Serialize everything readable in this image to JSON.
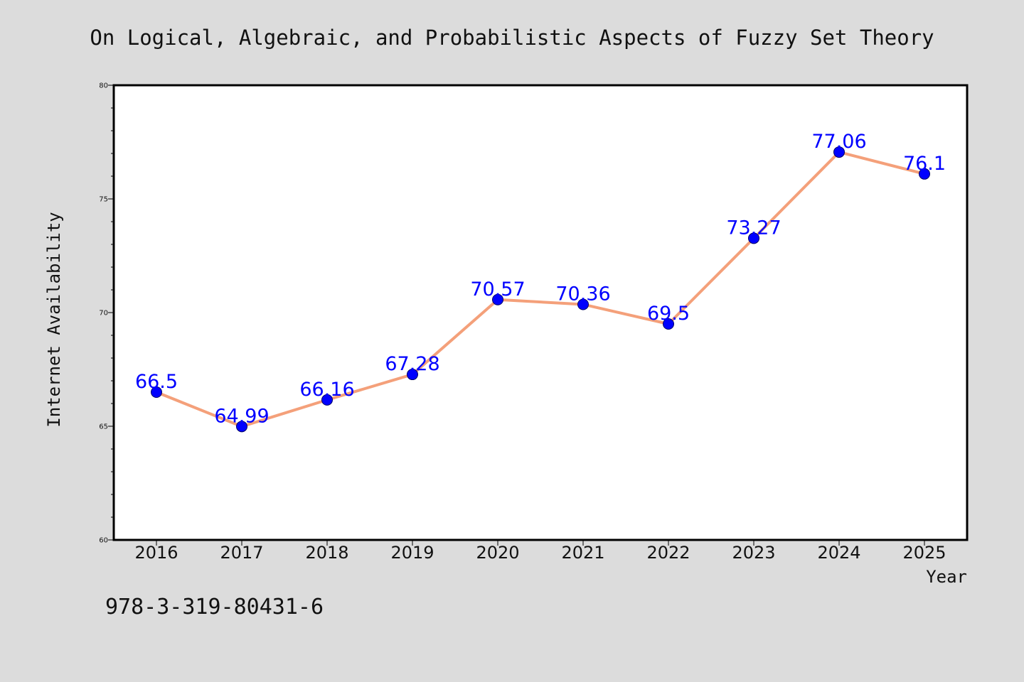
{
  "chart_data": {
    "type": "line",
    "title": "On Logical, Algebraic, and Probabilistic Aspects of Fuzzy Set Theory",
    "xlabel": "Year",
    "ylabel": "Internet Availability",
    "categories": [
      "2016",
      "2017",
      "2018",
      "2019",
      "2020",
      "2021",
      "2022",
      "2023",
      "2024",
      "2025"
    ],
    "series": [
      {
        "values": [
          66.5,
          64.99,
          66.16,
          67.28,
          70.57,
          70.36,
          69.5,
          73.27,
          77.06,
          76.1
        ],
        "labels": [
          "66.5",
          "64.99",
          "66.16",
          "67.28",
          "70.57",
          "70.36",
          "69.5",
          "73.27",
          "77.06",
          "76.1"
        ]
      }
    ],
    "ylim": [
      60,
      80
    ],
    "yticks": [
      "60",
      "65",
      "70",
      "75",
      "80"
    ],
    "grid": false,
    "line_color": "#f4a07a",
    "marker_color": "#0000ff",
    "label_color": "#0000ff"
  },
  "footer": {
    "text": "978-3-319-80431-6"
  }
}
